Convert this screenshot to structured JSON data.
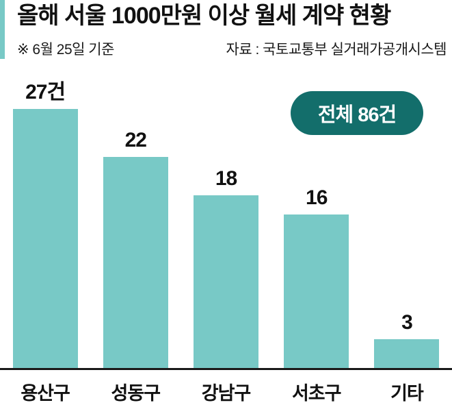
{
  "header": {
    "title": "올해 서울 1000만원 이상 월세 계약 현황",
    "note": "※ 6월 25일 기준",
    "source": "자료 : 국토교통부 실거래가공개시스템"
  },
  "total_badge": {
    "label": "전체 86건"
  },
  "chart_data": {
    "type": "bar",
    "title": "올해 서울 1000만원 이상 월세 계약 현황",
    "categories": [
      "용산구",
      "성동구",
      "강남구",
      "서초구",
      "기타"
    ],
    "values": [
      27,
      22,
      18,
      16,
      3
    ],
    "value_labels": [
      "27건",
      "22",
      "18",
      "16",
      "3"
    ],
    "unit": "건",
    "total": 86,
    "xlabel": "",
    "ylabel": "",
    "ylim": [
      0,
      27
    ],
    "grid": false,
    "legend": false,
    "annotations": [
      "전체 86건"
    ]
  },
  "colors": {
    "bar": "#78c9c6",
    "accent": "#78c9c6",
    "badge_bg": "#136e6b",
    "badge_text": "#ffffff",
    "baseline": "#1a1a1a"
  }
}
